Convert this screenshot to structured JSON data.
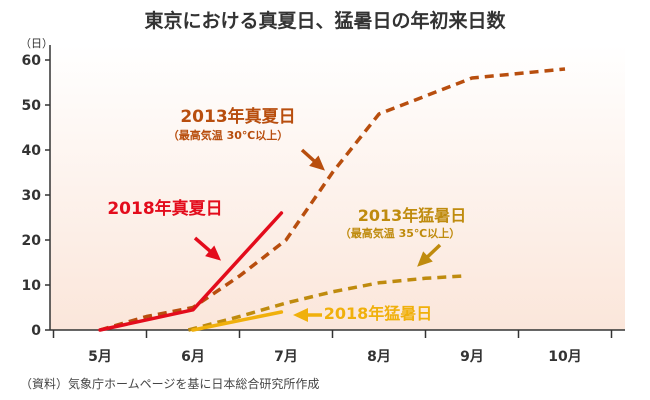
{
  "chart_data": {
    "type": "line",
    "title": "東京における真夏日、猛暑日の年初来日数",
    "ylabel": "（日）",
    "xlabel": "",
    "ylim": [
      0,
      60
    ],
    "yticks": [
      0,
      10,
      20,
      30,
      40,
      50,
      60
    ],
    "categories": [
      "5月",
      "6月",
      "7月",
      "8月",
      "9月",
      "10月"
    ],
    "series": [
      {
        "name": "2013年真夏日",
        "note": "（最高気温 30℃以上）",
        "color": "#b84e0e",
        "style": "dashed",
        "points": [
          [
            5.0,
            0
          ],
          [
            5.5,
            3
          ],
          [
            6.0,
            5
          ],
          [
            6.5,
            12
          ],
          [
            7.0,
            20
          ],
          [
            7.5,
            35
          ],
          [
            8.0,
            48
          ],
          [
            8.5,
            52
          ],
          [
            9.0,
            56
          ],
          [
            9.5,
            57
          ],
          [
            10.0,
            58
          ]
        ]
      },
      {
        "name": "2013年猛暑日",
        "note": "（最高気温 35℃以上）",
        "color": "#bf8b0e",
        "style": "dashed",
        "points": [
          [
            5.95,
            0
          ],
          [
            6.5,
            3
          ],
          [
            7.0,
            6
          ],
          [
            7.5,
            8.5
          ],
          [
            8.0,
            10.5
          ],
          [
            8.5,
            11.5
          ],
          [
            8.9,
            12
          ]
        ]
      },
      {
        "name": "2018年真夏日",
        "color": "#e30c1c",
        "style": "solid",
        "points": [
          [
            5.0,
            0
          ],
          [
            6.0,
            4.5
          ],
          [
            6.95,
            26
          ]
        ]
      },
      {
        "name": "2018年猛暑日",
        "color": "#f0b00c",
        "style": "solid",
        "points": [
          [
            6.0,
            0
          ],
          [
            6.95,
            4
          ]
        ]
      }
    ],
    "source": "（資料）気象庁ホームページを基に日本総合研究所作成",
    "grid": false
  }
}
